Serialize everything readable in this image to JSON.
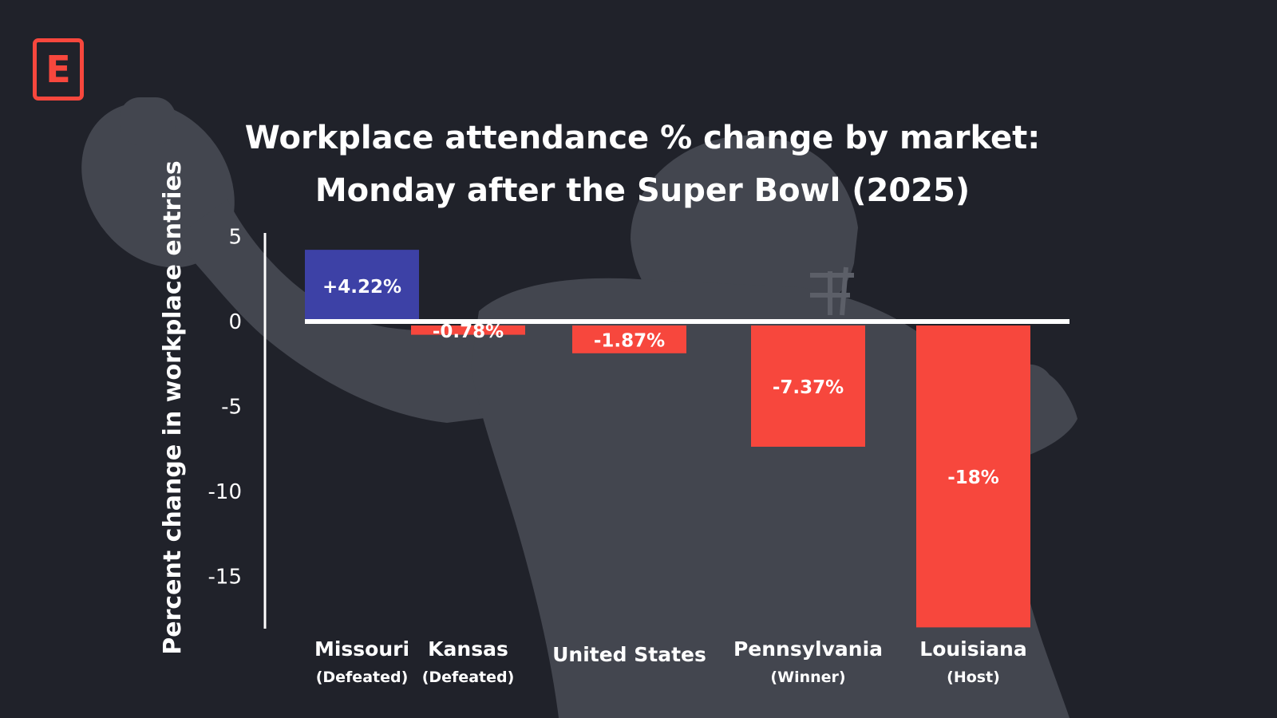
{
  "brand": {
    "logo_letter": "E",
    "accent": "#f7473d"
  },
  "colors": {
    "positive": "#3d41a6",
    "negative": "#f7473d",
    "background": "#20222a",
    "silhouette": "#43464f"
  },
  "chart_data": {
    "type": "bar",
    "title_line1": "Workplace attendance % change by market:",
    "title_line2": "Monday after the Super Bowl (2025)",
    "ylabel": "Percent change in workplace entries",
    "xlabel": "",
    "ylim": [
      -17.5,
      5
    ],
    "yticks": [
      "5",
      "0",
      "-5",
      "-10",
      "-15"
    ],
    "ytick_values": [
      5,
      0,
      -5,
      -10,
      -15
    ],
    "categories": [
      {
        "name": "Missouri",
        "sub": "(Defeated)"
      },
      {
        "name": "Kansas",
        "sub": "(Defeated)"
      },
      {
        "name": "United States",
        "sub": ""
      },
      {
        "name": "Pennsylvania",
        "sub": "(Winner)"
      },
      {
        "name": "Louisiana",
        "sub": "(Host)"
      }
    ],
    "values": [
      4.22,
      -0.78,
      -1.87,
      -7.37,
      -18
    ],
    "value_labels": [
      "+4.22%",
      "-0.78%",
      "-1.87%",
      "-7.37%",
      "-18%"
    ]
  }
}
